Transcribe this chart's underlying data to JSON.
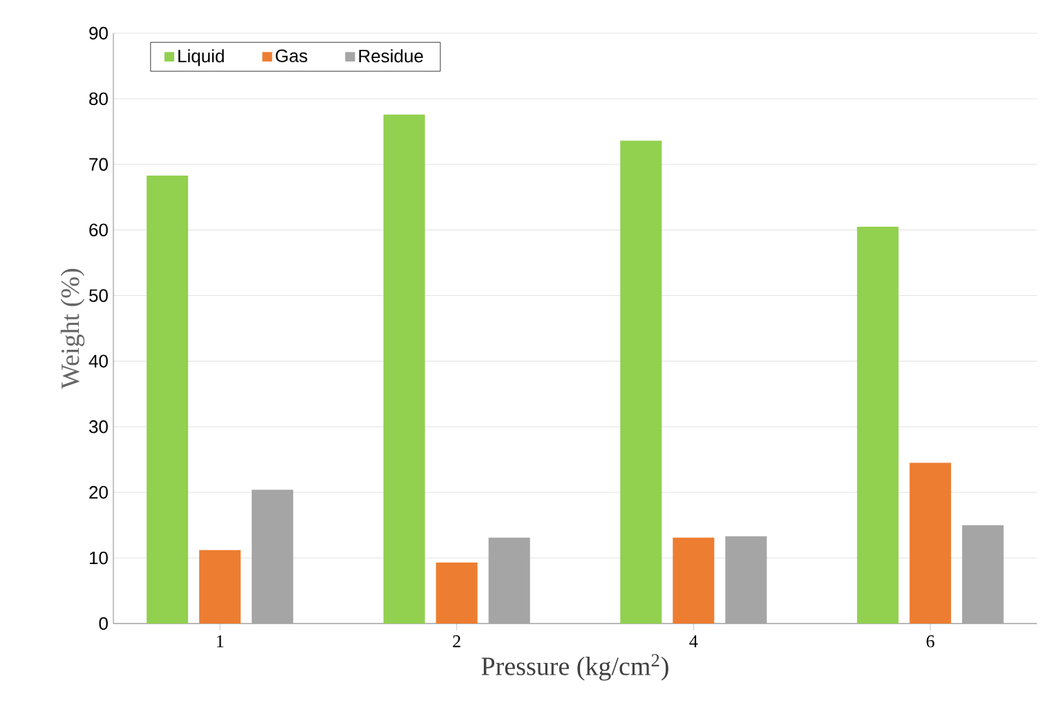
{
  "chart_data": {
    "type": "bar",
    "xlabel": "Pressure (kg/cm$^{2}$)",
    "ylabel": "Weight  (%)",
    "categories": [
      "1",
      "2",
      "4",
      "6"
    ],
    "series": [
      {
        "name": "Liquid",
        "color": "#92d050",
        "values": [
          68.3,
          77.6,
          73.6,
          60.5
        ]
      },
      {
        "name": "Gas",
        "color": "#ed7d31",
        "values": [
          11.2,
          9.3,
          13.1,
          24.5
        ]
      },
      {
        "name": "Residue",
        "color": "#a5a5a5",
        "values": [
          20.4,
          13.1,
          13.3,
          15.0
        ]
      }
    ],
    "ylim": [
      0,
      90
    ],
    "yticks": [
      0,
      10,
      20,
      30,
      40,
      50,
      60,
      70,
      80,
      90
    ],
    "grid": "y",
    "legend": "top left"
  }
}
